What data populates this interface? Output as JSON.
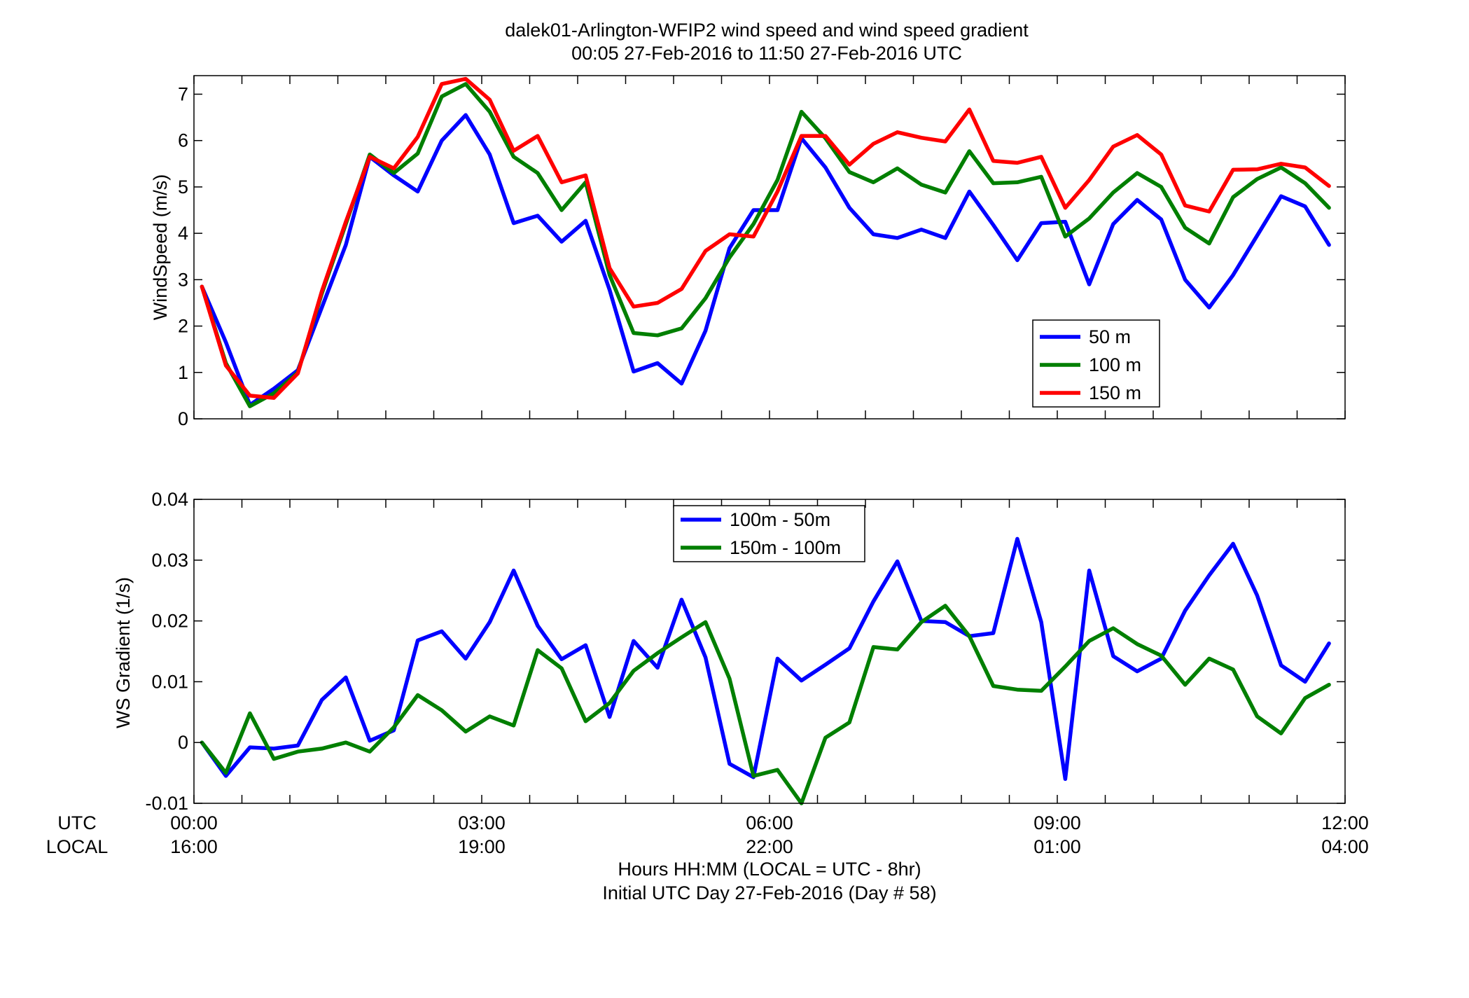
{
  "figure": {
    "title_line1": "dalek01-Arlington-WFIP2  wind speed and wind speed gradient",
    "title_line2": "00:05 27-Feb-2016 to 11:50 27-Feb-2016  UTC",
    "xlabel_line1": "Hours HH:MM  (LOCAL = UTC - 8hr)",
    "xlabel_line2": "Initial UTC Day 27-Feb-2016 (Day # 58)",
    "row_label_utc": "UTC",
    "row_label_local": "LOCAL"
  },
  "chart_data": [
    {
      "type": "line",
      "ylabel": "WindSpeed (m/s)",
      "xlim": [
        0,
        12
      ],
      "ylim": [
        0,
        7.4
      ],
      "yticks": [
        0,
        1,
        2,
        3,
        4,
        5,
        6,
        7
      ],
      "ytick_labels": [
        "0",
        "1",
        "2",
        "3",
        "4",
        "5",
        "6",
        "7"
      ],
      "xticks": [
        0,
        3,
        6,
        9,
        12
      ],
      "xtick_labels_utc": [
        "00:00",
        "03:00",
        "06:00",
        "09:00",
        "12:00"
      ],
      "xtick_labels_local": [
        "16:00",
        "19:00",
        "22:00",
        "01:00",
        "04:00"
      ],
      "grid": false,
      "legend_position": "lower-right",
      "x_hours": [
        0.083,
        0.333,
        0.583,
        0.833,
        1.083,
        1.333,
        1.583,
        1.833,
        2.083,
        2.333,
        2.583,
        2.833,
        3.083,
        3.333,
        3.583,
        3.833,
        4.083,
        4.333,
        4.583,
        4.833,
        5.083,
        5.333,
        5.583,
        5.833,
        6.083,
        6.333,
        6.583,
        6.833,
        7.083,
        7.333,
        7.583,
        7.833,
        8.083,
        8.333,
        8.583,
        8.833,
        9.083,
        9.333,
        9.583,
        9.833,
        10.083,
        10.333,
        10.583,
        10.833,
        11.083,
        11.333,
        11.583,
        11.833
      ],
      "series": [
        {
          "name": "50 m",
          "color": "#0000ff",
          "values": [
            2.85,
            1.65,
            0.3,
            0.65,
            1.05,
            2.4,
            3.75,
            5.65,
            5.25,
            4.9,
            6.0,
            6.55,
            5.7,
            4.22,
            4.38,
            3.82,
            4.27,
            2.78,
            1.02,
            1.2,
            0.76,
            1.9,
            3.68,
            4.5,
            4.5,
            6.05,
            5.42,
            4.55,
            3.98,
            3.9,
            4.08,
            3.9,
            4.9,
            4.18,
            3.42,
            4.22,
            4.25,
            2.9,
            4.2,
            4.72,
            4.3,
            3.0,
            2.4,
            3.1,
            3.95,
            4.8,
            4.58,
            3.75
          ]
        },
        {
          "name": "100 m",
          "color": "#007f00",
          "values": [
            2.85,
            1.2,
            0.27,
            0.55,
            1.0,
            2.7,
            4.2,
            5.7,
            5.3,
            5.72,
            6.95,
            7.22,
            6.62,
            5.65,
            5.3,
            4.5,
            5.1,
            3.1,
            1.85,
            1.8,
            1.95,
            2.6,
            3.48,
            4.2,
            5.15,
            6.62,
            6.05,
            5.32,
            5.1,
            5.4,
            5.05,
            4.88,
            5.77,
            5.08,
            5.1,
            5.22,
            3.93,
            4.32,
            4.88,
            5.3,
            5.0,
            4.12,
            3.78,
            4.78,
            5.17,
            5.42,
            5.08,
            4.55
          ]
        },
        {
          "name": "150 m",
          "color": "#ff0000",
          "values": [
            2.85,
            1.15,
            0.5,
            0.45,
            0.98,
            2.75,
            4.25,
            5.65,
            5.4,
            6.08,
            7.22,
            7.33,
            6.88,
            5.78,
            6.1,
            5.1,
            5.25,
            3.25,
            2.42,
            2.5,
            2.8,
            3.62,
            3.98,
            3.93,
            4.9,
            6.1,
            6.1,
            5.48,
            5.93,
            6.18,
            6.06,
            5.98,
            6.67,
            5.56,
            5.52,
            5.65,
            4.55,
            5.15,
            5.87,
            6.12,
            5.7,
            4.6,
            4.47,
            5.37,
            5.38,
            5.5,
            5.42,
            5.02
          ]
        }
      ]
    },
    {
      "type": "line",
      "ylabel": "WS Gradient (1/s)",
      "xlim": [
        0,
        12
      ],
      "ylim": [
        -0.01,
        0.04
      ],
      "yticks": [
        -0.01,
        0,
        0.01,
        0.02,
        0.03,
        0.04
      ],
      "ytick_labels": [
        "-0.01",
        "0",
        "0.01",
        "0.02",
        "0.03",
        "0.04"
      ],
      "xticks": [
        0,
        3,
        6,
        9,
        12
      ],
      "grid": false,
      "legend_position": "top-center",
      "x_hours": [
        0.083,
        0.333,
        0.583,
        0.833,
        1.083,
        1.333,
        1.583,
        1.833,
        2.083,
        2.333,
        2.583,
        2.833,
        3.083,
        3.333,
        3.583,
        3.833,
        4.083,
        4.333,
        4.583,
        4.833,
        5.083,
        5.333,
        5.583,
        5.833,
        6.083,
        6.333,
        6.583,
        6.833,
        7.083,
        7.333,
        7.583,
        7.833,
        8.083,
        8.333,
        8.583,
        8.833,
        9.083,
        9.333,
        9.583,
        9.833,
        10.083,
        10.333,
        10.583,
        10.833,
        11.083,
        11.333,
        11.583,
        11.833
      ],
      "series": [
        {
          "name": "100m - 50m",
          "color": "#0000ff",
          "values": [
            0.0,
            -0.0055,
            -0.0008,
            -0.001,
            -0.0005,
            0.007,
            0.0107,
            0.0003,
            0.002,
            0.0168,
            0.0183,
            0.0138,
            0.0198,
            0.0283,
            0.0192,
            0.0137,
            0.016,
            0.0042,
            0.0167,
            0.0123,
            0.0235,
            0.014,
            -0.0035,
            -0.0057,
            0.0138,
            0.0102,
            0.0128,
            0.0155,
            0.0232,
            0.0298,
            0.02,
            0.0198,
            0.0175,
            0.018,
            0.0335,
            0.0198,
            -0.006,
            0.0283,
            0.0142,
            0.0117,
            0.0138,
            0.0217,
            0.0275,
            0.0327,
            0.0242,
            0.0127,
            0.01,
            0.0163
          ]
        },
        {
          "name": "150m - 100m",
          "color": "#007f00",
          "values": [
            0.0,
            -0.005,
            0.0048,
            -0.0027,
            -0.0015,
            -0.001,
            0.0,
            -0.0015,
            0.0025,
            0.0078,
            0.0053,
            0.0018,
            0.0043,
            0.0028,
            0.0152,
            0.0122,
            0.0035,
            0.0065,
            0.0118,
            0.0147,
            0.0173,
            0.0198,
            0.0105,
            -0.0055,
            -0.0045,
            -0.01,
            0.0008,
            0.0033,
            0.0157,
            0.0153,
            0.0198,
            0.0225,
            0.0175,
            0.0093,
            0.0087,
            0.0085,
            0.0125,
            0.0167,
            0.0188,
            0.0162,
            0.0143,
            0.0095,
            0.0138,
            0.012,
            0.0043,
            0.0015,
            0.0073,
            0.0095
          ]
        }
      ]
    }
  ]
}
